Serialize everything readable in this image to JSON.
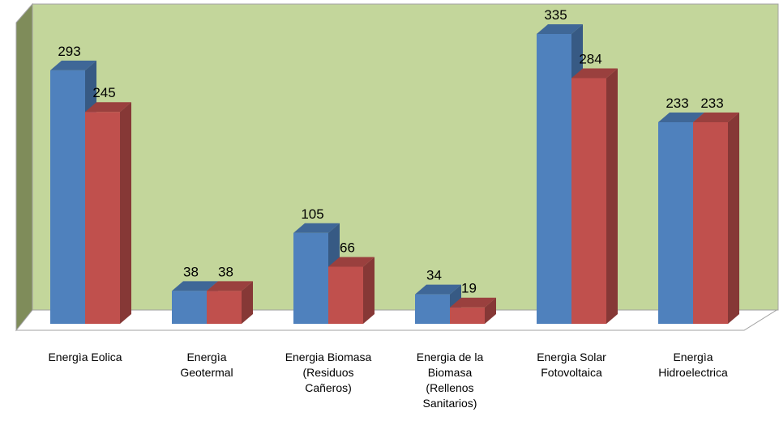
{
  "chart_data": {
    "type": "bar3d",
    "categories": [
      "Energìa Eolica",
      "Energìa Geotermal",
      "Energia Biomasa (Residuos Cañeros)",
      "Energia de la Biomasa (Rellenos Sanitarios)",
      "Energìa Solar Fotovoltaica",
      "Energìa Hidroelectrica"
    ],
    "series": [
      {
        "color": "#4f81bd",
        "values": [
          293,
          38,
          105,
          34,
          335,
          233
        ]
      },
      {
        "color": "#c0504d",
        "values": [
          245,
          38,
          66,
          19,
          284,
          233
        ]
      }
    ],
    "ylim": [
      0,
      350
    ]
  }
}
